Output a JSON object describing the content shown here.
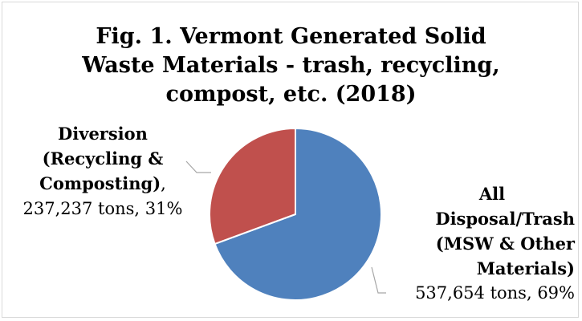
{
  "chart_data": {
    "type": "pie",
    "title_lines": [
      "Fig. 1. Vermont Generated Solid",
      "Waste Materials - trash, recycling,",
      "compost, etc. (2018)"
    ],
    "slices": [
      {
        "name_lines": [
          "All",
          "Disposal/Trash",
          "(MSW & Other",
          "Materials)"
        ],
        "value_text": "537,654 tons, 69%",
        "value": 537654,
        "percent": 69,
        "color": "#4f81bd"
      },
      {
        "name_lines": [
          "Diversion",
          "(Recycling &",
          "Composting)"
        ],
        "value_text": "237,237 tons, 31%",
        "value": 237237,
        "percent": 31,
        "color": "#c0504d"
      }
    ],
    "separator": ","
  }
}
